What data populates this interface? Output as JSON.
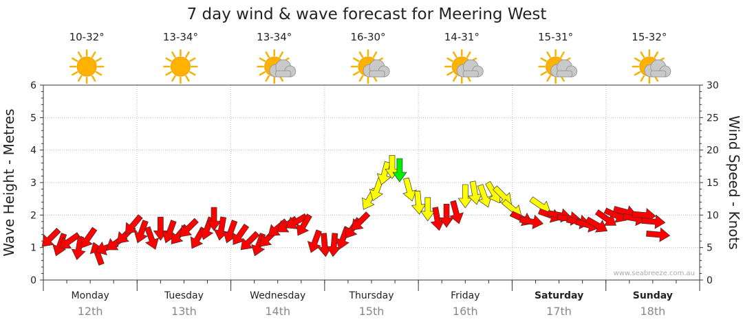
{
  "chart_data": {
    "type": "scatter",
    "title": "7 day wind & wave forecast for Meering West",
    "ylabel_left": "Wave Height - Metres",
    "ylabel_right": "Wind Speed - Knots",
    "ylim_left": [
      0,
      6
    ],
    "ylim_right": [
      0,
      30
    ],
    "yticks_left": [
      "0",
      "1",
      "2",
      "3",
      "4",
      "5",
      "6"
    ],
    "yticks_right": [
      "0",
      "5",
      "10",
      "15",
      "20",
      "25",
      "30"
    ],
    "grid": true,
    "credit": "www.seabreeze.com.au",
    "days": [
      {
        "day": "Monday",
        "date": "12th",
        "temp": "10-32°",
        "icon": "sun-icon",
        "weekend": false
      },
      {
        "day": "Tuesday",
        "date": "13th",
        "temp": "13-34°",
        "icon": "sun-icon",
        "weekend": false
      },
      {
        "day": "Wednesday",
        "date": "14th",
        "temp": "13-34°",
        "icon": "sun-cloud-icon",
        "weekend": false
      },
      {
        "day": "Thursday",
        "date": "15th",
        "temp": "16-30°",
        "icon": "sun-cloud-icon",
        "weekend": false
      },
      {
        "day": "Friday",
        "date": "16th",
        "temp": "14-31°",
        "icon": "sun-cloud-icon",
        "weekend": false
      },
      {
        "day": "Saturday",
        "date": "17th",
        "temp": "15-31°",
        "icon": "sun-cloud-icon",
        "weekend": true
      },
      {
        "day": "Sunday",
        "date": "18th",
        "temp": "15-32°",
        "icon": "sun-cloud-icon",
        "weekend": true
      }
    ],
    "colors": {
      "red": "#ff0000",
      "yellow": "#ffff00",
      "green": "#00ee00"
    },
    "series": [
      {
        "values": [
          [
            0.08,
            1.3,
            225,
            "red"
          ],
          [
            0.18,
            1.1,
            200,
            "red"
          ],
          [
            0.28,
            1.2,
            235,
            "red"
          ],
          [
            0.38,
            1.0,
            190,
            "red"
          ],
          [
            0.48,
            1.3,
            215,
            "red"
          ],
          [
            0.58,
            0.8,
            340,
            "red"
          ],
          [
            0.68,
            1.0,
            250,
            "red"
          ],
          [
            0.78,
            1.15,
            235,
            "red"
          ],
          [
            0.88,
            1.4,
            225,
            "red"
          ],
          [
            0.96,
            1.7,
            220,
            "red"
          ],
          [
            1.05,
            1.5,
            200,
            "red"
          ],
          [
            1.15,
            1.3,
            160,
            "red"
          ],
          [
            1.25,
            1.6,
            180,
            "red"
          ],
          [
            1.35,
            1.5,
            200,
            "red"
          ],
          [
            1.45,
            1.4,
            220,
            "red"
          ],
          [
            1.55,
            1.6,
            225,
            "red"
          ],
          [
            1.65,
            1.3,
            210,
            "red"
          ],
          [
            1.75,
            1.6,
            200,
            "red"
          ],
          [
            1.82,
            1.9,
            180,
            "red"
          ],
          [
            1.9,
            1.6,
            190,
            "red"
          ],
          [
            2.0,
            1.5,
            200,
            "red"
          ],
          [
            2.1,
            1.4,
            215,
            "red"
          ],
          [
            2.2,
            1.2,
            225,
            "red"
          ],
          [
            2.3,
            1.1,
            200,
            "red"
          ],
          [
            2.4,
            1.3,
            225,
            "red"
          ],
          [
            2.5,
            1.6,
            230,
            "red"
          ],
          [
            2.6,
            1.7,
            235,
            "red"
          ],
          [
            2.7,
            1.8,
            240,
            "red"
          ],
          [
            2.78,
            1.7,
            210,
            "red"
          ],
          [
            2.9,
            1.2,
            200,
            "red"
          ],
          [
            3.0,
            1.1,
            175,
            "red"
          ],
          [
            3.1,
            1.1,
            185,
            "red"
          ],
          [
            3.2,
            1.3,
            200,
            "red"
          ],
          [
            3.3,
            1.6,
            215,
            "red"
          ],
          [
            3.38,
            1.8,
            225,
            "red"
          ],
          [
            3.48,
            2.5,
            210,
            "yellow"
          ],
          [
            3.56,
            2.8,
            200,
            "yellow"
          ],
          [
            3.64,
            3.3,
            195,
            "yellow"
          ],
          [
            3.72,
            3.5,
            180,
            "yellow"
          ],
          [
            3.8,
            3.4,
            180,
            "green"
          ],
          [
            3.9,
            2.8,
            165,
            "yellow"
          ],
          [
            4.0,
            2.4,
            175,
            "yellow"
          ],
          [
            4.1,
            2.2,
            180,
            "yellow"
          ],
          [
            4.2,
            1.9,
            170,
            "red"
          ],
          [
            4.3,
            2.0,
            180,
            "red"
          ],
          [
            4.4,
            2.1,
            165,
            "red"
          ],
          [
            4.5,
            2.6,
            180,
            "yellow"
          ],
          [
            4.6,
            2.7,
            170,
            "yellow"
          ],
          [
            4.7,
            2.6,
            160,
            "yellow"
          ],
          [
            4.8,
            2.7,
            150,
            "yellow"
          ],
          [
            4.9,
            2.6,
            135,
            "yellow"
          ],
          [
            5.0,
            2.2,
            130,
            "yellow"
          ],
          [
            5.1,
            1.9,
            115,
            "red"
          ],
          [
            5.2,
            1.8,
            100,
            "red"
          ],
          [
            5.3,
            2.3,
            125,
            "yellow"
          ],
          [
            5.4,
            2.0,
            110,
            "red"
          ],
          [
            5.5,
            2.0,
            100,
            "red"
          ],
          [
            5.6,
            1.9,
            95,
            "red"
          ],
          [
            5.7,
            1.8,
            100,
            "red"
          ],
          [
            5.8,
            1.7,
            105,
            "red"
          ],
          [
            5.9,
            1.7,
            120,
            "red"
          ],
          [
            6.0,
            1.9,
            125,
            "red"
          ],
          [
            6.1,
            2.0,
            115,
            "red"
          ],
          [
            6.2,
            2.1,
            105,
            "red"
          ],
          [
            6.3,
            1.9,
            100,
            "red"
          ],
          [
            6.4,
            2.0,
            95,
            "red"
          ],
          [
            6.5,
            1.8,
            95,
            "red"
          ],
          [
            6.55,
            1.4,
            95,
            "red"
          ]
        ]
      }
    ]
  }
}
